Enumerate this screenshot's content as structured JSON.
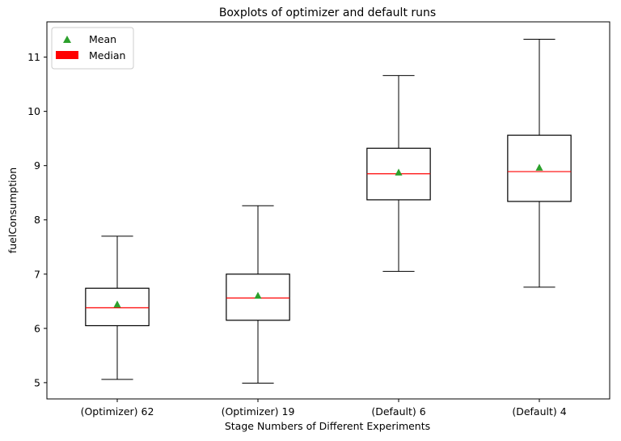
{
  "chart_data": {
    "type": "boxplot",
    "title": "Boxplots of optimizer and default runs",
    "xlabel": "Stage Numbers of Different Experiments",
    "ylabel": "fuelConsumption",
    "ylim": [
      4.7,
      11.65
    ],
    "yticks": [
      5,
      6,
      7,
      8,
      9,
      10,
      11
    ],
    "grid": false,
    "legend": {
      "placement": "top-left",
      "entries": [
        {
          "label": "Mean",
          "marker": "triangle",
          "color": "#2ca02c"
        },
        {
          "label": "Median",
          "marker": "rect",
          "color": "#ff0000"
        }
      ]
    },
    "boxes": [
      {
        "category": "(Optimizer) 62",
        "whisker_low": 5.06,
        "q1": 6.05,
        "median": 6.38,
        "q3": 6.74,
        "whisker_high": 7.7,
        "mean": 6.44
      },
      {
        "category": "(Optimizer) 19",
        "whisker_low": 4.99,
        "q1": 6.15,
        "median": 6.56,
        "q3": 7.0,
        "whisker_high": 8.26,
        "mean": 6.6
      },
      {
        "category": "(Default) 6",
        "whisker_low": 7.05,
        "q1": 8.37,
        "median": 8.85,
        "q3": 9.32,
        "whisker_high": 10.66,
        "mean": 8.87
      },
      {
        "category": "(Default) 4",
        "whisker_low": 6.76,
        "q1": 8.34,
        "median": 8.89,
        "q3": 9.56,
        "whisker_high": 11.33,
        "mean": 8.96
      }
    ],
    "colors": {
      "box": "#000000",
      "median": "#ff0000",
      "mean": "#2ca02c"
    }
  }
}
